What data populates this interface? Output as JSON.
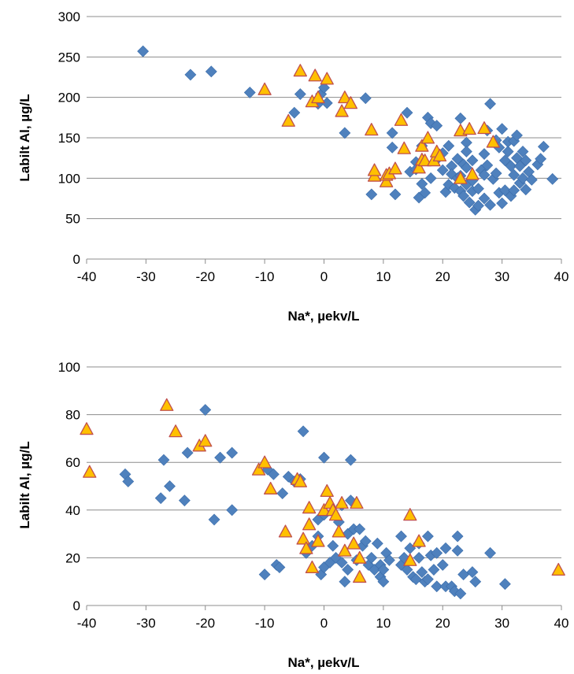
{
  "colors": {
    "diamond": "#4F81BD",
    "diamond_stroke": "#3A6CAA",
    "triangle_fill": "#FFC000",
    "triangle_stroke": "#C0504D",
    "grid": "#8C8C8C"
  },
  "chart_data": [
    {
      "type": "scatter",
      "xlabel": "Na*, µekv/L",
      "ylabel": "Labilt Al, µg/L",
      "xlim": [
        -40,
        40
      ],
      "ylim": [
        0,
        300
      ],
      "xticks": [
        -40,
        -30,
        -20,
        -10,
        0,
        10,
        20,
        30,
        40
      ],
      "yticks": [
        0,
        50,
        100,
        150,
        200,
        250,
        300
      ],
      "grid": "horizontal",
      "series": [
        {
          "marker": "diamond",
          "points": [
            [
              -30.5,
              257
            ],
            [
              -22.5,
              228
            ],
            [
              -19,
              232
            ],
            [
              -12.5,
              206
            ],
            [
              -5,
              181
            ],
            [
              -4,
              204
            ],
            [
              -1,
              192
            ],
            [
              -0.5,
              204
            ],
            [
              0,
              212
            ],
            [
              0.5,
              193
            ],
            [
              3.5,
              156
            ],
            [
              7,
              199
            ],
            [
              8,
              80
            ],
            [
              11.5,
              156
            ],
            [
              11.5,
              138
            ],
            [
              12,
              80
            ],
            [
              14,
              181
            ],
            [
              14.5,
              108
            ],
            [
              15.5,
              120
            ],
            [
              15.5,
              111
            ],
            [
              16,
              76
            ],
            [
              16.5,
              140
            ],
            [
              16.5,
              93
            ],
            [
              17,
              82
            ],
            [
              17.5,
              175
            ],
            [
              18,
              168
            ],
            [
              18,
              100
            ],
            [
              19,
              165
            ],
            [
              19,
              123
            ],
            [
              20,
              131
            ],
            [
              20,
              110
            ],
            [
              20.5,
              83
            ],
            [
              21,
              92
            ],
            [
              21,
              140
            ],
            [
              21.5,
              115
            ],
            [
              21.5,
              105
            ],
            [
              22,
              88
            ],
            [
              22.5,
              100
            ],
            [
              22.5,
              124
            ],
            [
              23,
              174
            ],
            [
              23,
              103
            ],
            [
              23,
              84
            ],
            [
              23.5,
              117
            ],
            [
              23.5,
              78
            ],
            [
              24,
              144
            ],
            [
              24,
              133
            ],
            [
              24,
              113
            ],
            [
              24,
              92
            ],
            [
              24.5,
              70
            ],
            [
              25,
              84
            ],
            [
              25,
              122
            ],
            [
              25,
              97
            ],
            [
              25.5,
              61
            ],
            [
              26,
              66
            ],
            [
              26,
              87
            ],
            [
              26.5,
              110
            ],
            [
              27,
              104
            ],
            [
              27,
              75
            ],
            [
              27,
              130
            ],
            [
              27.5,
              159
            ],
            [
              27.5,
              116
            ],
            [
              28,
              192
            ],
            [
              28,
              67
            ],
            [
              28.5,
              99
            ],
            [
              29,
              147
            ],
            [
              29,
              106
            ],
            [
              29.5,
              82
            ],
            [
              29.5,
              138
            ],
            [
              30,
              161
            ],
            [
              30,
              69
            ],
            [
              30.5,
              122
            ],
            [
              30.5,
              85
            ],
            [
              31,
              133
            ],
            [
              31,
              145
            ],
            [
              31.5,
              78
            ],
            [
              31.5,
              115
            ],
            [
              32,
              146
            ],
            [
              32,
              104
            ],
            [
              32,
              85
            ],
            [
              32.5,
              153
            ],
            [
              32.5,
              125
            ],
            [
              33,
              94
            ],
            [
              33,
              115
            ],
            [
              33.5,
              133
            ],
            [
              33.5,
              100
            ],
            [
              34,
              86
            ],
            [
              34,
              122
            ],
            [
              34.5,
              108
            ],
            [
              35,
              98
            ],
            [
              36,
              117
            ],
            [
              36.5,
              124
            ],
            [
              37,
              139
            ],
            [
              38.5,
              99
            ]
          ]
        },
        {
          "marker": "triangle",
          "points": [
            [
              -10,
              210
            ],
            [
              -6,
              171
            ],
            [
              -4,
              233
            ],
            [
              -2,
              195
            ],
            [
              -1.5,
              227
            ],
            [
              -1,
              200
            ],
            [
              0.5,
              223
            ],
            [
              3,
              183
            ],
            [
              3.5,
              200
            ],
            [
              4.5,
              193
            ],
            [
              8,
              160
            ],
            [
              8.5,
              103
            ],
            [
              8.5,
              110
            ],
            [
              10.5,
              96
            ],
            [
              10.5,
              104
            ],
            [
              11,
              106
            ],
            [
              12,
              112
            ],
            [
              13,
              172
            ],
            [
              13.5,
              137
            ],
            [
              16,
              113
            ],
            [
              16.5,
              123
            ],
            [
              16.5,
              140
            ],
            [
              17,
              122
            ],
            [
              17.5,
              150
            ],
            [
              18.5,
              122
            ],
            [
              19,
              133
            ],
            [
              19.5,
              128
            ],
            [
              23,
              100
            ],
            [
              23,
              159
            ],
            [
              24.5,
              161
            ],
            [
              25,
              105
            ],
            [
              27,
              162
            ],
            [
              28.5,
              145
            ]
          ]
        }
      ]
    },
    {
      "type": "scatter",
      "xlabel": "Na*, µekv/L",
      "ylabel": "Labilt Al, µg/L",
      "xlim": [
        -40,
        40
      ],
      "ylim": [
        0,
        100
      ],
      "xticks": [
        -40,
        -30,
        -20,
        -10,
        0,
        10,
        20,
        30,
        40
      ],
      "yticks": [
        0,
        20,
        40,
        60,
        80,
        100
      ],
      "grid": "horizontal",
      "series": [
        {
          "marker": "diamond",
          "points": [
            [
              -33.5,
              55
            ],
            [
              -33,
              52
            ],
            [
              -27.5,
              45
            ],
            [
              -27,
              61
            ],
            [
              -26,
              50
            ],
            [
              -23.5,
              44
            ],
            [
              -23,
              64
            ],
            [
              -20,
              82
            ],
            [
              -18.5,
              36
            ],
            [
              -17.5,
              62
            ],
            [
              -15.5,
              64
            ],
            [
              -15.5,
              40
            ],
            [
              -10,
              13
            ],
            [
              -9.5,
              57
            ],
            [
              -8.5,
              55
            ],
            [
              -8,
              17
            ],
            [
              -7.5,
              16
            ],
            [
              -7,
              47
            ],
            [
              -6,
              54
            ],
            [
              -5,
              52
            ],
            [
              -4,
              53
            ],
            [
              -3.5,
              73
            ],
            [
              -3,
              22
            ],
            [
              -2,
              25
            ],
            [
              -1,
              29
            ],
            [
              -1,
              36
            ],
            [
              -0.5,
              13
            ],
            [
              0,
              62
            ],
            [
              0,
              16
            ],
            [
              0,
              38
            ],
            [
              1,
              18
            ],
            [
              1.5,
              25
            ],
            [
              2,
              20
            ],
            [
              2.5,
              35
            ],
            [
              3,
              18
            ],
            [
              3,
              42
            ],
            [
              3.5,
              10
            ],
            [
              4,
              15
            ],
            [
              4,
              30
            ],
            [
              4.5,
              61
            ],
            [
              4.5,
              44
            ],
            [
              5,
              32
            ],
            [
              5.5,
              19
            ],
            [
              6,
              32
            ],
            [
              6.5,
              25
            ],
            [
              7,
              27
            ],
            [
              7.5,
              17
            ],
            [
              8,
              20
            ],
            [
              8.5,
              15
            ],
            [
              9,
              26
            ],
            [
              9.5,
              12
            ],
            [
              9.5,
              17
            ],
            [
              10,
              10
            ],
            [
              10,
              15
            ],
            [
              10.5,
              22
            ],
            [
              11,
              19
            ],
            [
              13,
              17
            ],
            [
              13,
              29
            ],
            [
              13.5,
              20
            ],
            [
              14,
              15
            ],
            [
              14.5,
              24
            ],
            [
              15,
              12
            ],
            [
              15.5,
              11
            ],
            [
              16,
              20
            ],
            [
              16,
              26
            ],
            [
              16.5,
              14
            ],
            [
              17,
              10
            ],
            [
              17.5,
              11
            ],
            [
              17.5,
              29
            ],
            [
              18,
              21
            ],
            [
              18.5,
              15
            ],
            [
              19,
              22
            ],
            [
              19,
              8
            ],
            [
              20,
              17
            ],
            [
              20.5,
              24
            ],
            [
              20.5,
              8
            ],
            [
              21.5,
              8
            ],
            [
              22,
              6
            ],
            [
              22.5,
              23
            ],
            [
              22.5,
              29
            ],
            [
              23,
              5
            ],
            [
              23.5,
              13
            ],
            [
              25,
              14
            ],
            [
              25.5,
              10
            ],
            [
              28,
              22
            ],
            [
              30.5,
              9
            ]
          ]
        },
        {
          "marker": "triangle",
          "points": [
            [
              -40,
              74
            ],
            [
              -39.5,
              56
            ],
            [
              -26.5,
              84
            ],
            [
              -25,
              73
            ],
            [
              -21,
              67
            ],
            [
              -20,
              69
            ],
            [
              -11,
              57
            ],
            [
              -10,
              60
            ],
            [
              -9,
              49
            ],
            [
              -6.5,
              31
            ],
            [
              -4.5,
              53
            ],
            [
              -4,
              52
            ],
            [
              -3.5,
              28
            ],
            [
              -3,
              24
            ],
            [
              -2.5,
              34
            ],
            [
              -2.5,
              41
            ],
            [
              -2,
              16
            ],
            [
              -1,
              27
            ],
            [
              0,
              40
            ],
            [
              0.5,
              48
            ],
            [
              1,
              43
            ],
            [
              1.5,
              40
            ],
            [
              2,
              38
            ],
            [
              2.5,
              31
            ],
            [
              3,
              43
            ],
            [
              3.5,
              23
            ],
            [
              5,
              26
            ],
            [
              5.5,
              43
            ],
            [
              6,
              20
            ],
            [
              6,
              12
            ],
            [
              14.5,
              38
            ],
            [
              14.5,
              19
            ],
            [
              16,
              27
            ],
            [
              39.5,
              15
            ]
          ]
        }
      ]
    }
  ]
}
